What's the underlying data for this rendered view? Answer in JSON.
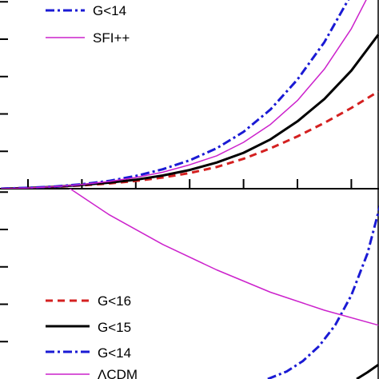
{
  "chart_data": [
    {
      "type": "line",
      "panel": "top",
      "xlim": [
        0,
        7
      ],
      "ylim": [
        0,
        1.25
      ],
      "x_ticks": [
        0.5,
        1.5,
        2.5,
        3.5,
        4.5,
        5.5,
        6.5
      ],
      "y_ticks": [
        0.25,
        0.5,
        0.75,
        1.0,
        1.25
      ],
      "series": [
        {
          "name": "G<16",
          "color": "#d42020",
          "style": "dashed",
          "x": [
            0,
            0.5,
            1,
            1.5,
            2,
            2.5,
            3,
            3.5,
            4,
            4.5,
            5,
            5.5,
            6,
            6.5,
            7
          ],
          "y": [
            0,
            0.005,
            0.012,
            0.022,
            0.035,
            0.052,
            0.075,
            0.105,
            0.145,
            0.2,
            0.27,
            0.35,
            0.44,
            0.54,
            0.65
          ]
        },
        {
          "name": "G<15",
          "color": "#000000",
          "style": "solid-thick",
          "x": [
            0,
            0.5,
            1,
            1.5,
            2,
            2.5,
            3,
            3.5,
            4,
            4.5,
            5,
            5.5,
            6,
            6.5,
            7
          ],
          "y": [
            0,
            0.005,
            0.013,
            0.025,
            0.04,
            0.06,
            0.088,
            0.125,
            0.175,
            0.24,
            0.33,
            0.45,
            0.6,
            0.79,
            1.03
          ]
        },
        {
          "name": "G<14",
          "color": "#1a1ad4",
          "style": "dashdot",
          "x": [
            0,
            0.5,
            1,
            1.5,
            2,
            2.5,
            3,
            3.5,
            4,
            4.5,
            5,
            5.5,
            6,
            6.5
          ],
          "y": [
            0,
            0.006,
            0.015,
            0.03,
            0.052,
            0.085,
            0.13,
            0.19,
            0.27,
            0.38,
            0.53,
            0.73,
            0.98,
            1.3
          ]
        },
        {
          "name": "SFI++",
          "color": "#cc22cc",
          "style": "solid-thin",
          "x": [
            0,
            0.5,
            1,
            1.5,
            2,
            2.5,
            3,
            3.5,
            4,
            4.5,
            5,
            5.5,
            6,
            6.5,
            7
          ],
          "y": [
            0,
            0.005,
            0.014,
            0.028,
            0.048,
            0.075,
            0.11,
            0.16,
            0.22,
            0.31,
            0.43,
            0.59,
            0.8,
            1.07,
            1.42
          ]
        }
      ]
    },
    {
      "type": "line",
      "panel": "bottom",
      "xlim": [
        0,
        7
      ],
      "ylim": [
        0,
        1.25
      ],
      "y_ticks": [
        0.25,
        0.5,
        0.75,
        1.0,
        1.25
      ],
      "series": [
        {
          "name": "G<16",
          "color": "#d42020",
          "style": "dashed",
          "x": [],
          "y": []
        },
        {
          "name": "G<15",
          "color": "#000000",
          "style": "solid-thick",
          "x": [
            6.6,
            6.8,
            7.0
          ],
          "y": [
            0.0,
            0.045,
            0.095
          ]
        },
        {
          "name": "G<14",
          "color": "#1a1ad4",
          "style": "dashdot",
          "x": [
            4.95,
            5.3,
            5.6,
            5.9,
            6.2,
            6.5,
            6.8,
            7.1
          ],
          "y": [
            0.0,
            0.05,
            0.12,
            0.22,
            0.36,
            0.56,
            0.84,
            1.25
          ]
        },
        {
          "name": "ΛCDM",
          "color": "#cc22cc",
          "style": "solid-thin",
          "x": [
            1.25,
            2,
            3,
            4,
            5,
            6,
            7
          ],
          "y": [
            1.28,
            1.1,
            0.9,
            0.73,
            0.58,
            0.46,
            0.36
          ]
        }
      ]
    }
  ]
}
